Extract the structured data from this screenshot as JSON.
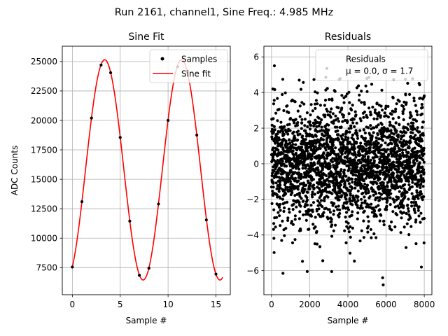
{
  "figure": {
    "suptitle": "Run 2161, channel1, Sine Freq.: 4.985 MHz"
  },
  "chart_data": [
    {
      "type": "scatter",
      "title": "Sine Fit",
      "xlabel": "Sample #",
      "ylabel": "ADC Counts",
      "xlim": [
        -1.05,
        16.5
      ],
      "ylim": [
        5200,
        26300
      ],
      "xticks": [
        0,
        5,
        10,
        15
      ],
      "yticks": [
        7500,
        10000,
        12500,
        15000,
        17500,
        20000,
        22500,
        25000
      ],
      "grid": true,
      "legend": {
        "placement": "upper right",
        "entries": [
          "Samples",
          "Sine fit"
        ]
      },
      "series": [
        {
          "name": "Samples",
          "kind": "points",
          "color": "#000000",
          "x": [
            0,
            1,
            2,
            3,
            4,
            5,
            6,
            7,
            8,
            9,
            10,
            11,
            12,
            13,
            14,
            15
          ],
          "y": [
            7550,
            13100,
            20200,
            24700,
            24050,
            18550,
            11450,
            6850,
            7450,
            12900,
            20000,
            24550,
            24150,
            18750,
            11550,
            6950
          ]
        },
        {
          "name": "Sine fit",
          "kind": "line",
          "color": "#ff0000",
          "fit": {
            "amplitude": 9350,
            "offset": 15800,
            "period": 8.025,
            "peak_x": 3.38,
            "x_range": [
              0,
              15.7
            ]
          }
        }
      ]
    },
    {
      "type": "scatter",
      "title": "Residuals",
      "xlabel": "Sample #",
      "ylabel": "",
      "xlim": [
        -400,
        8400
      ],
      "ylim": [
        -7.35,
        6.6
      ],
      "xticks": [
        0,
        2000,
        4000,
        6000,
        8000
      ],
      "yticks": [
        -6,
        -4,
        -2,
        0,
        2,
        4,
        6
      ],
      "grid": true,
      "legend": {
        "placement": "upper right",
        "entries": [
          "Residuals"
        ],
        "stats": "μ = 0.0, σ = 1.7"
      },
      "series": [
        {
          "name": "Residuals",
          "color": "#000000",
          "count": 8000,
          "mean": 0.0,
          "std": 1.7,
          "x_range": [
            0,
            7999
          ],
          "notable_points": [
            {
              "x": 150,
              "y": 5.5
            },
            {
              "x": 2900,
              "y": 5.35
            },
            {
              "x": 5050,
              "y": 6.05
            },
            {
              "x": 5850,
              "y": -6.8
            },
            {
              "x": 5820,
              "y": -6.4
            },
            {
              "x": 600,
              "y": -6.15
            },
            {
              "x": 1870,
              "y": -6.05
            },
            {
              "x": 7850,
              "y": -5.8
            },
            {
              "x": 3150,
              "y": -6.05
            }
          ]
        }
      ]
    }
  ]
}
